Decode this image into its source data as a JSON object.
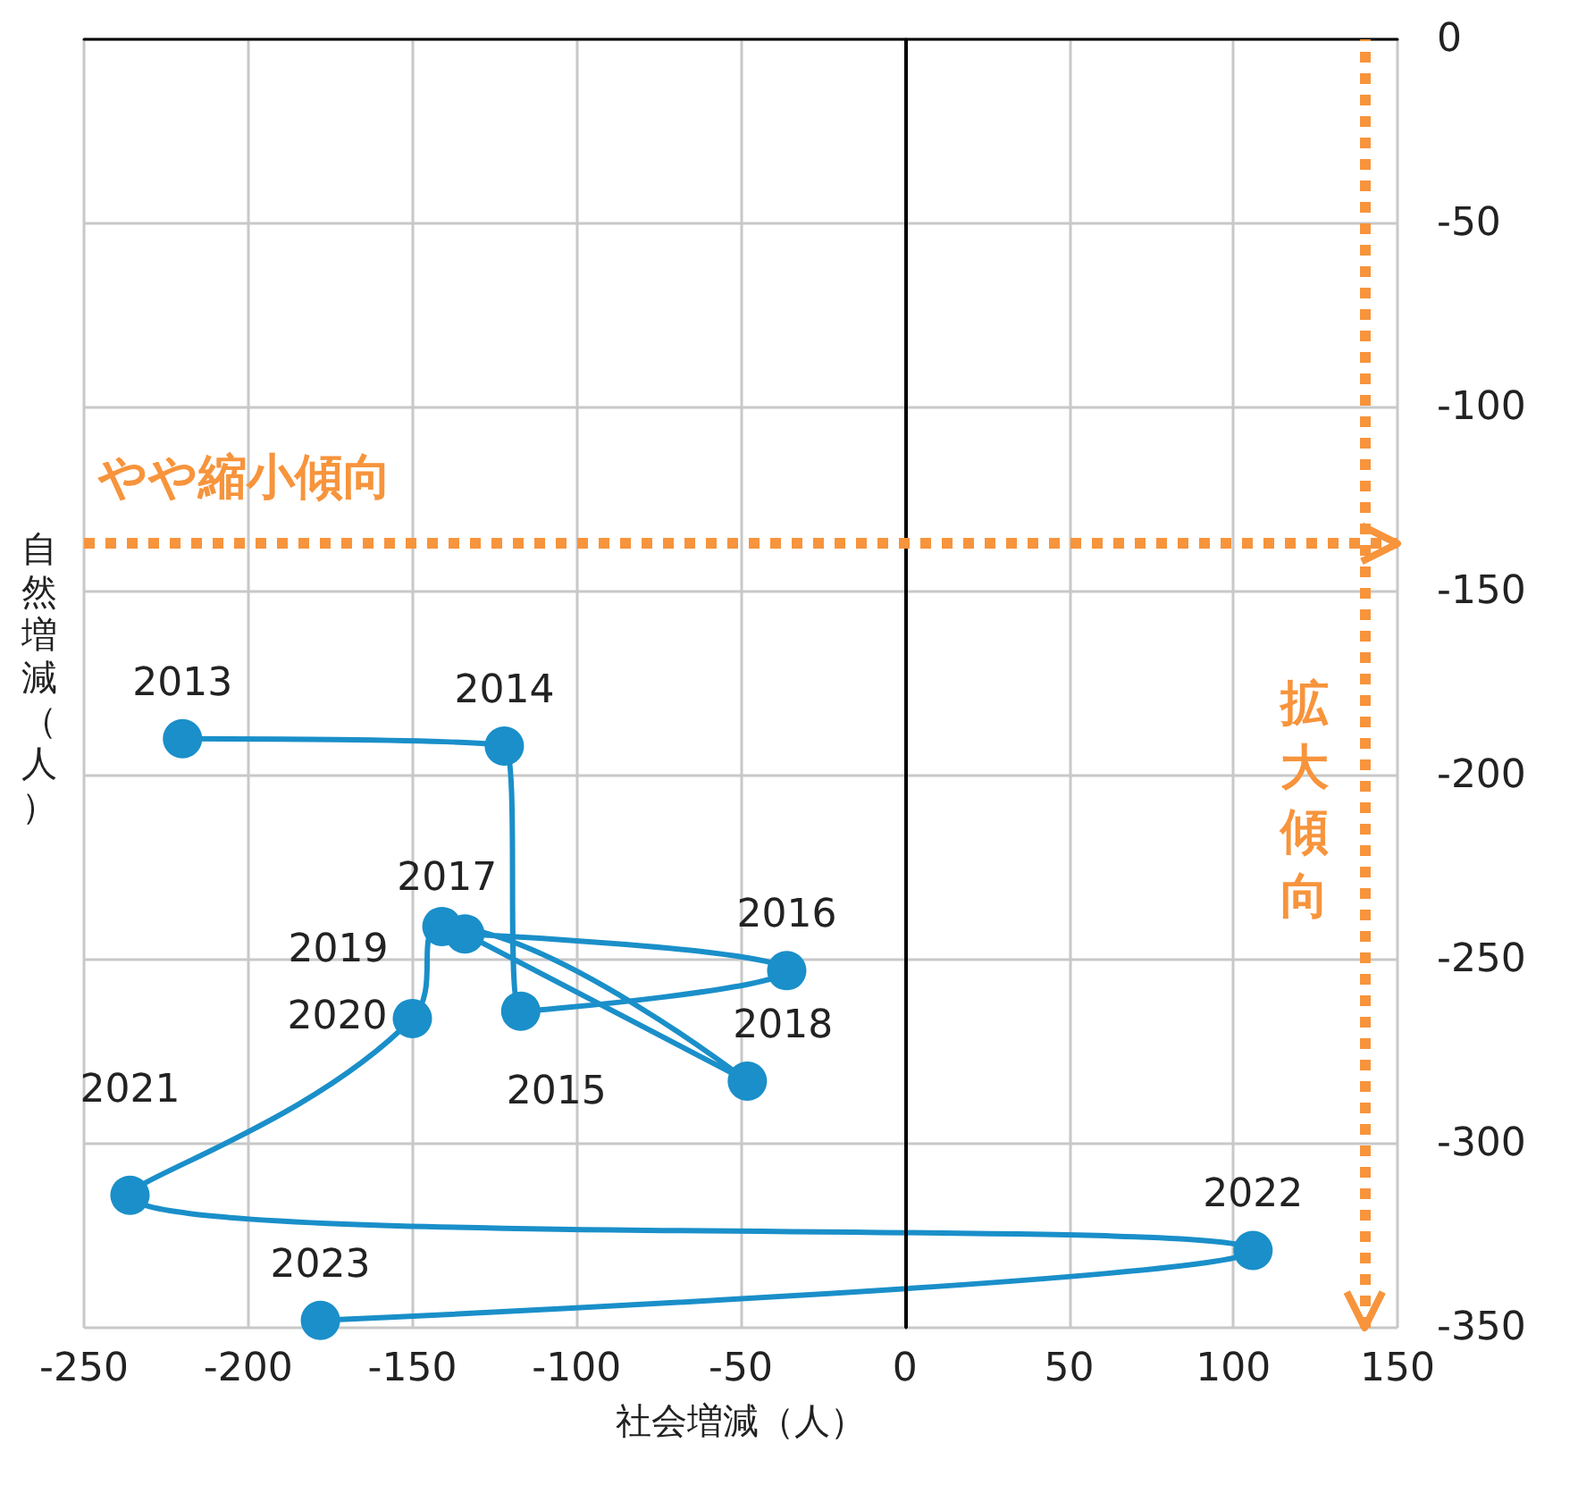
{
  "chart_data": {
    "type": "line",
    "xlabel": "社会増減（人）",
    "ylabel": "自然増減（人）",
    "x": [
      -220,
      -122,
      -117,
      -36,
      -134,
      -48,
      -141,
      -150,
      -236,
      106,
      -178
    ],
    "series": [
      {
        "color": "#1a8fc9",
        "values": [
          -190,
          -192,
          -264,
          -253,
          -243,
          -283,
          -241,
          -266,
          -314,
          -329,
          -348
        ]
      }
    ],
    "xlim": [
      -250,
      150
    ],
    "xticks": [
      -250,
      -200,
      -150,
      -100,
      -50,
      0,
      50,
      100,
      150
    ],
    "ylim": [
      -350,
      0
    ],
    "yticks": [
      -350,
      -300,
      -250,
      -200,
      -150,
      -100,
      -50,
      0
    ],
    "grid": true,
    "marker": "circle",
    "line_style": "solid",
    "ref_lines": [
      {
        "axis": "x",
        "value": 0,
        "color": "#000000",
        "line_style": "solid"
      },
      {
        "axis": "y",
        "value": -137,
        "label": "やや縮小傾向",
        "color": "#f7943c",
        "line_style": "dotted"
      },
      {
        "axis": "x",
        "value": 140,
        "label": "拡大傾向",
        "color": "#f7943c",
        "line_style": "dotted"
      }
    ],
    "annotations": [
      {
        "text": "2013",
        "x": -220,
        "y": -190
      },
      {
        "text": "2014",
        "x": -122,
        "y": -192
      },
      {
        "text": "2015",
        "x": -117,
        "y": -264
      },
      {
        "text": "2016",
        "x": -36,
        "y": -253
      },
      {
        "text": "2017",
        "x": -134,
        "y": -243
      },
      {
        "text": "2018",
        "x": -48,
        "y": -283
      },
      {
        "text": "2019",
        "x": -141,
        "y": -241
      },
      {
        "text": "2020",
        "x": -150,
        "y": -266
      },
      {
        "text": "2021",
        "x": -236,
        "y": -314
      },
      {
        "text": "2022",
        "x": 106,
        "y": -329
      },
      {
        "text": "2023",
        "x": -178,
        "y": -348
      }
    ]
  }
}
